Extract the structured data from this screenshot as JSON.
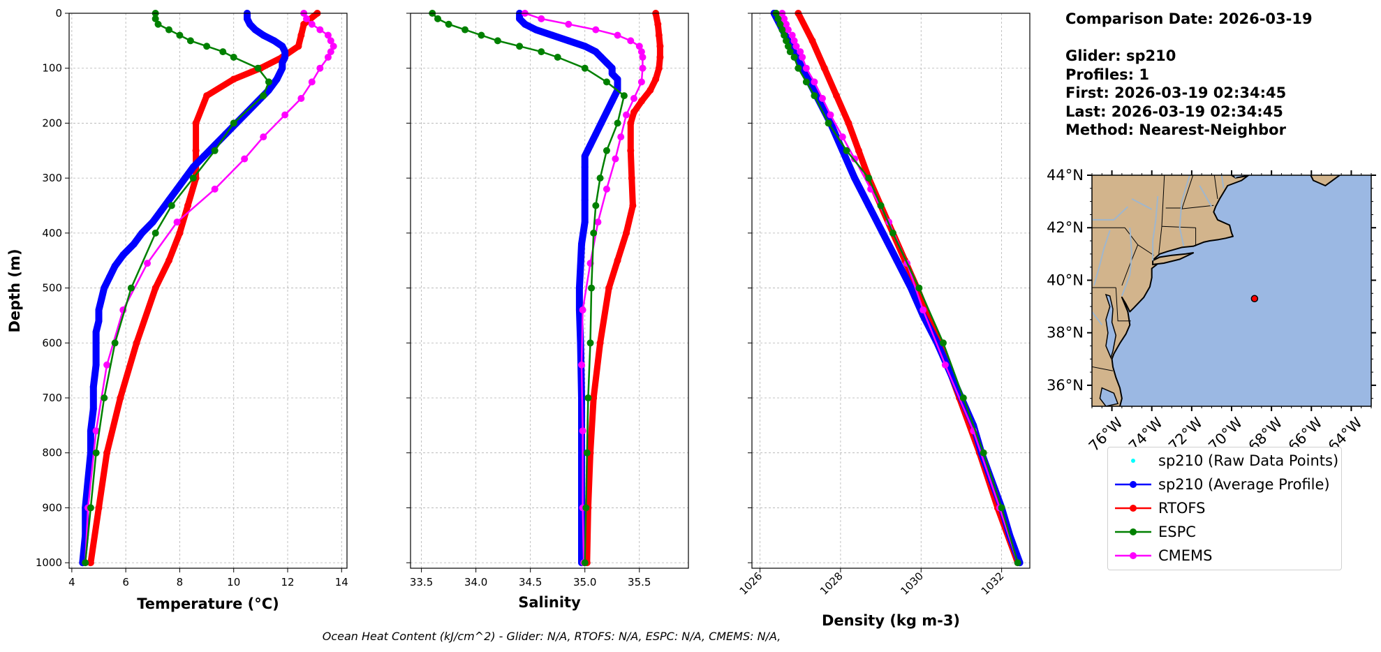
{
  "info": {
    "comparison_date": "Comparison Date: 2026-03-19",
    "glider": "Glider: sp210",
    "profiles": "Profiles: 1",
    "first": "First: 2026-03-19 02:34:45",
    "last": "Last: 2026-03-19 02:34:45",
    "method": "Method: Nearest-Neighbor"
  },
  "footer": "Ocean Heat Content (kJ/cm^2) - Glider: N/A,  RTOFS: N/A,  ESPC: N/A,  CMEMS: N/A,",
  "colors": {
    "glider_raw": "#00ffff",
    "glider": "#0000ff",
    "rtofs": "#ff0000",
    "espc": "#008000",
    "cmems": "#ff00ff",
    "land": "#d2b48c",
    "ocean": "#9bb8e3",
    "rivers": "#9fb6cd"
  },
  "legend": [
    {
      "key": "glider_raw",
      "label": "sp210 (Raw Data Points)",
      "style": "dot"
    },
    {
      "key": "glider",
      "label": "sp210 (Average Profile)",
      "style": "line-marker"
    },
    {
      "key": "rtofs",
      "label": "RTOFS",
      "style": "line-marker"
    },
    {
      "key": "espc",
      "label": "ESPC",
      "style": "line-marker"
    },
    {
      "key": "cmems",
      "label": "CMEMS",
      "style": "line-marker"
    }
  ],
  "chart_data": [
    {
      "type": "line",
      "xlabel": "Temperature (°C)",
      "ylabel": "Depth (m)",
      "xlim": [
        3.9,
        14.2
      ],
      "xticks": [
        4,
        6,
        8,
        10,
        12,
        14
      ],
      "ylim": [
        1010,
        0
      ],
      "yticks": [
        0,
        100,
        200,
        300,
        400,
        500,
        600,
        700,
        800,
        900,
        1000
      ],
      "grid": true,
      "series": [
        {
          "key": "glider",
          "depth": [
            0,
            10,
            20,
            30,
            40,
            50,
            60,
            70,
            80,
            90,
            100,
            120,
            140,
            160,
            180,
            200,
            220,
            240,
            260,
            280,
            300,
            320,
            340,
            360,
            380,
            400,
            420,
            440,
            460,
            480,
            500,
            520,
            540,
            560,
            580,
            600,
            640,
            680,
            720,
            760,
            800,
            850,
            900,
            950,
            1000
          ],
          "values": [
            10.5,
            10.5,
            10.6,
            10.8,
            11.1,
            11.5,
            11.8,
            11.9,
            11.9,
            11.8,
            11.8,
            11.6,
            11.3,
            10.9,
            10.5,
            10.1,
            9.7,
            9.3,
            8.9,
            8.5,
            8.2,
            7.9,
            7.6,
            7.3,
            7.0,
            6.6,
            6.3,
            5.9,
            5.6,
            5.4,
            5.2,
            5.1,
            5.0,
            5.0,
            4.9,
            4.9,
            4.9,
            4.8,
            4.8,
            4.7,
            4.7,
            4.6,
            4.5,
            4.5,
            4.4
          ]
        },
        {
          "key": "rtofs",
          "depth": [
            0,
            20,
            40,
            60,
            80,
            100,
            120,
            150,
            200,
            250,
            300,
            350,
            400,
            450,
            500,
            600,
            700,
            800,
            900,
            1000
          ],
          "values": [
            13.1,
            12.6,
            12.5,
            12.4,
            11.8,
            11.0,
            10.0,
            9.0,
            8.6,
            8.6,
            8.6,
            8.3,
            8.0,
            7.6,
            7.1,
            6.4,
            5.8,
            5.3,
            5.0,
            4.7
          ]
        },
        {
          "key": "espc",
          "depth": [
            0,
            10,
            20,
            30,
            40,
            50,
            60,
            70,
            80,
            100,
            125,
            150,
            200,
            250,
            300,
            350,
            400,
            500,
            600,
            700,
            800,
            900,
            1000
          ],
          "values": [
            7.1,
            7.1,
            7.2,
            7.6,
            8.0,
            8.4,
            9.0,
            9.6,
            10.0,
            10.9,
            11.3,
            11.1,
            10.0,
            9.3,
            8.5,
            7.7,
            7.1,
            6.2,
            5.6,
            5.2,
            4.9,
            4.7,
            4.5
          ]
        },
        {
          "key": "cmems",
          "depth": [
            0,
            10,
            20,
            30,
            40,
            50,
            60,
            70,
            80,
            100,
            125,
            155,
            185,
            225,
            265,
            320,
            380,
            455,
            540,
            640,
            760,
            900,
            1000
          ],
          "values": [
            12.6,
            12.7,
            12.9,
            13.2,
            13.5,
            13.6,
            13.7,
            13.6,
            13.5,
            13.2,
            12.9,
            12.5,
            11.9,
            11.1,
            10.4,
            9.3,
            7.9,
            6.8,
            5.9,
            5.3,
            4.9,
            4.6,
            4.5
          ]
        }
      ]
    },
    {
      "type": "line",
      "xlabel": "Salinity",
      "xlim": [
        33.4,
        35.95
      ],
      "xticks": [
        33.5,
        34.0,
        34.5,
        35.0,
        35.5
      ],
      "ylim": [
        1010,
        0
      ],
      "grid": true,
      "series": [
        {
          "key": "glider",
          "depth": [
            0,
            10,
            20,
            30,
            40,
            50,
            60,
            70,
            80,
            90,
            100,
            110,
            120,
            140,
            160,
            180,
            200,
            220,
            240,
            260,
            280,
            300,
            340,
            380,
            420,
            460,
            500,
            540,
            600,
            700,
            800,
            900,
            1000
          ],
          "values": [
            34.4,
            34.4,
            34.45,
            34.55,
            34.7,
            34.85,
            35.0,
            35.1,
            35.15,
            35.2,
            35.25,
            35.25,
            35.3,
            35.3,
            35.25,
            35.2,
            35.15,
            35.1,
            35.05,
            35.0,
            35.0,
            35.0,
            35.0,
            35.0,
            34.97,
            34.96,
            34.95,
            34.95,
            34.96,
            34.97,
            34.97,
            34.97,
            34.97
          ]
        },
        {
          "key": "rtofs",
          "depth": [
            0,
            20,
            40,
            60,
            80,
            100,
            120,
            140,
            160,
            180,
            200,
            250,
            300,
            350,
            400,
            450,
            500,
            600,
            700,
            800,
            900,
            1000
          ],
          "values": [
            35.65,
            35.67,
            35.68,
            35.69,
            35.69,
            35.68,
            35.65,
            35.6,
            35.52,
            35.45,
            35.42,
            35.42,
            35.43,
            35.44,
            35.38,
            35.3,
            35.22,
            35.14,
            35.08,
            35.05,
            35.03,
            35.02
          ]
        },
        {
          "key": "espc",
          "depth": [
            0,
            10,
            20,
            30,
            40,
            50,
            60,
            70,
            80,
            100,
            125,
            150,
            200,
            250,
            300,
            350,
            400,
            500,
            600,
            700,
            800,
            900,
            1000
          ],
          "values": [
            33.6,
            33.65,
            33.75,
            33.9,
            34.05,
            34.2,
            34.4,
            34.6,
            34.75,
            35.0,
            35.2,
            35.36,
            35.3,
            35.2,
            35.14,
            35.1,
            35.08,
            35.06,
            35.05,
            35.03,
            35.02,
            35.01,
            35.0
          ]
        },
        {
          "key": "cmems",
          "depth": [
            0,
            10,
            20,
            30,
            40,
            50,
            60,
            70,
            80,
            100,
            125,
            155,
            185,
            225,
            265,
            320,
            380,
            455,
            540,
            640,
            760,
            900,
            1000
          ],
          "values": [
            34.45,
            34.6,
            34.85,
            35.1,
            35.3,
            35.42,
            35.5,
            35.52,
            35.53,
            35.53,
            35.52,
            35.45,
            35.38,
            35.33,
            35.28,
            35.2,
            35.12,
            35.05,
            34.98,
            34.97,
            34.98,
            34.98,
            34.99
          ]
        }
      ]
    },
    {
      "type": "line",
      "xlabel": "Density (kg m-3)",
      "xlim": [
        1025.8,
        1032.7
      ],
      "xticks": [
        1026,
        1028,
        1030,
        1032
      ],
      "ylim": [
        1010,
        0
      ],
      "grid": true,
      "series": [
        {
          "key": "glider",
          "depth": [
            0,
            50,
            100,
            150,
            200,
            250,
            300,
            350,
            400,
            450,
            500,
            550,
            600,
            650,
            700,
            750,
            800,
            850,
            900,
            950,
            1000
          ],
          "values": [
            1026.35,
            1026.7,
            1027.05,
            1027.4,
            1027.75,
            1028.05,
            1028.35,
            1028.7,
            1029.05,
            1029.4,
            1029.75,
            1030.05,
            1030.4,
            1030.7,
            1031.0,
            1031.3,
            1031.5,
            1031.75,
            1032.0,
            1032.2,
            1032.45
          ]
        },
        {
          "key": "rtofs",
          "depth": [
            0,
            50,
            100,
            150,
            200,
            250,
            300,
            350,
            400,
            450,
            500,
            600,
            700,
            800,
            900,
            1000
          ],
          "values": [
            1026.95,
            1027.3,
            1027.6,
            1027.9,
            1028.2,
            1028.45,
            1028.7,
            1029.0,
            1029.3,
            1029.6,
            1029.9,
            1030.45,
            1030.95,
            1031.45,
            1031.9,
            1032.4
          ]
        },
        {
          "key": "espc",
          "depth": [
            0,
            10,
            20,
            30,
            40,
            50,
            60,
            70,
            80,
            100,
            125,
            150,
            200,
            250,
            300,
            350,
            400,
            500,
            600,
            700,
            800,
            900,
            1000
          ],
          "values": [
            1026.4,
            1026.45,
            1026.5,
            1026.55,
            1026.6,
            1026.65,
            1026.7,
            1026.75,
            1026.85,
            1026.95,
            1027.15,
            1027.35,
            1027.7,
            1028.15,
            1028.7,
            1029.0,
            1029.3,
            1029.95,
            1030.55,
            1031.05,
            1031.55,
            1032.0,
            1032.4
          ]
        },
        {
          "key": "cmems",
          "depth": [
            0,
            10,
            20,
            30,
            40,
            50,
            60,
            70,
            80,
            100,
            125,
            155,
            185,
            225,
            265,
            320,
            380,
            455,
            540,
            640,
            760,
            900,
            1000
          ],
          "values": [
            1026.55,
            1026.6,
            1026.65,
            1026.7,
            1026.8,
            1026.85,
            1026.9,
            1027.0,
            1027.05,
            1027.15,
            1027.35,
            1027.55,
            1027.75,
            1028.05,
            1028.35,
            1028.75,
            1029.2,
            1029.65,
            1030.05,
            1030.6,
            1031.3,
            1031.95,
            1032.4
          ]
        }
      ]
    },
    {
      "type": "map",
      "lon_range": [
        -77,
        -63
      ],
      "lat_range": [
        35.2,
        44.0
      ],
      "lon_ticks": [
        -76,
        -74,
        -72,
        -70,
        -68,
        -66,
        -64
      ],
      "lon_labels": [
        "76°W",
        "74°W",
        "72°W",
        "70°W",
        "68°W",
        "66°W",
        "64°W"
      ],
      "lat_ticks": [
        36,
        38,
        40,
        42,
        44
      ],
      "lat_labels": [
        "36°N",
        "38°N",
        "40°N",
        "42°N",
        "44°N"
      ],
      "glider_position": {
        "lon": -68.85,
        "lat": 39.3
      }
    }
  ]
}
